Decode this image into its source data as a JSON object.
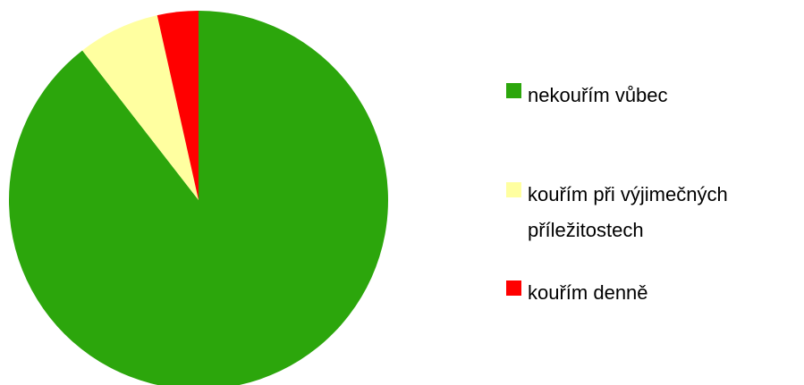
{
  "chart_data": {
    "type": "pie",
    "categories": [
      "nekouřím vůbec",
      "kouřím při výjimečných příležitostech",
      "kouřím denně"
    ],
    "values": [
      89.5,
      7,
      3.5
    ],
    "colors": [
      "#2ca60c",
      "#ffffa0",
      "#ff0000"
    ]
  }
}
